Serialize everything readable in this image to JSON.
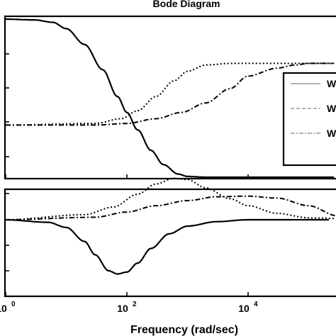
{
  "chart_data": {
    "type": "line",
    "title": "Bode Diagram",
    "xlabel": "Frequency  (rad/sec)",
    "x_scale": "log",
    "x_tick_labels": [
      {
        "base": "10",
        "exp": "0",
        "value": 1
      },
      {
        "base": "10",
        "exp": "2",
        "value": 100
      },
      {
        "base": "10",
        "exp": "4",
        "value": 10000
      }
    ],
    "legend": {
      "placement": "right",
      "entries": [
        {
          "label": "W",
          "style": "solid"
        },
        {
          "label": "W",
          "style": "dashed"
        },
        {
          "label": "W",
          "style": "dashdot"
        }
      ]
    },
    "panels": [
      {
        "name": "magnitude",
        "series": [
          {
            "style": "solid",
            "x": [
              1,
              3,
              6,
              10,
              20,
              40,
              70,
              100,
              150,
              250,
              400,
              700,
              1000,
              2000,
              10000,
              100000,
              1000000
            ],
            "y": [
              1.0,
              0.995,
              0.98,
              0.94,
              0.84,
              0.68,
              0.51,
              0.41,
              0.3,
              0.17,
              0.08,
              0.02,
              0.005,
              0.0,
              0.0,
              0.0,
              0.0
            ]
          },
          {
            "style": "dotted",
            "x": [
              1,
              30,
              80,
              150,
              300,
              600,
              1000,
              2000,
              5000,
              10000,
              100000,
              1000000
            ],
            "y": [
              0.33,
              0.34,
              0.37,
              0.42,
              0.51,
              0.61,
              0.67,
              0.71,
              0.72,
              0.72,
              0.72,
              0.72
            ]
          },
          {
            "style": "dashdot",
            "x": [
              1,
              30,
              100,
              300,
              800,
              2000,
              5000,
              10000,
              30000,
              60000,
              100000,
              1000000
            ],
            "y": [
              0.33,
              0.33,
              0.34,
              0.37,
              0.41,
              0.47,
              0.56,
              0.64,
              0.69,
              0.71,
              0.72,
              0.72
            ]
          }
        ]
      },
      {
        "name": "phase",
        "series": [
          {
            "style": "solid",
            "x": [
              1,
              5,
              10,
              20,
              30,
              50,
              70,
              100,
              150,
              250,
              500,
              1000,
              3000,
              10000,
              1000000
            ],
            "y": [
              0.0,
              -0.04,
              -0.12,
              -0.34,
              -0.55,
              -0.8,
              -0.85,
              -0.82,
              -0.68,
              -0.45,
              -0.22,
              -0.1,
              -0.03,
              0.0,
              0.0
            ]
          },
          {
            "style": "dotted",
            "x": [
              1,
              20,
              60,
              150,
              300,
              600,
              1000,
              2000,
              5000,
              10000,
              30000,
              100000,
              1000000
            ],
            "y": [
              0.0,
              0.08,
              0.2,
              0.4,
              0.56,
              0.65,
              0.63,
              0.5,
              0.33,
              0.22,
              0.1,
              0.03,
              0.0
            ]
          },
          {
            "style": "dashdot",
            "x": [
              1,
              30,
              100,
              300,
              1000,
              3000,
              10000,
              30000,
              100000,
              300000,
              1000000
            ],
            "y": [
              0.0,
              0.04,
              0.12,
              0.22,
              0.3,
              0.36,
              0.37,
              0.34,
              0.22,
              0.06,
              0.0
            ]
          }
        ]
      }
    ],
    "grid": false
  }
}
